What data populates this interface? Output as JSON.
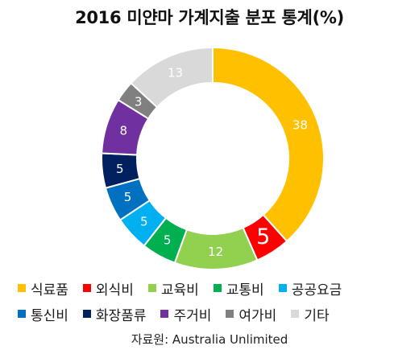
{
  "chart_data": {
    "type": "pie",
    "title": "2016 미얀마 가계지출 분포 통계(%)",
    "source": "자료원: Australia Unlimited",
    "legend_position": "bottom",
    "categories": [
      "식료품",
      "외식비",
      "교육비",
      "교통비",
      "공공요금",
      "통신비",
      "화장품류",
      "주거비",
      "여가비",
      "기타"
    ],
    "values": [
      38,
      5,
      12,
      5,
      5,
      5,
      5,
      8,
      3,
      13
    ],
    "colors": [
      "#FFC000",
      "#FF0000",
      "#92D050",
      "#00B050",
      "#00B0F0",
      "#0070C0",
      "#002060",
      "#7030A0",
      "#808080",
      "#D9D9D9"
    ],
    "label_colors": [
      "#ffffff",
      "#ffffff",
      "#ffffff",
      "#ffffff",
      "#ffffff",
      "#ffffff",
      "#ffffff",
      "#ffffff",
      "#ffffff",
      "#ffffff"
    ]
  }
}
